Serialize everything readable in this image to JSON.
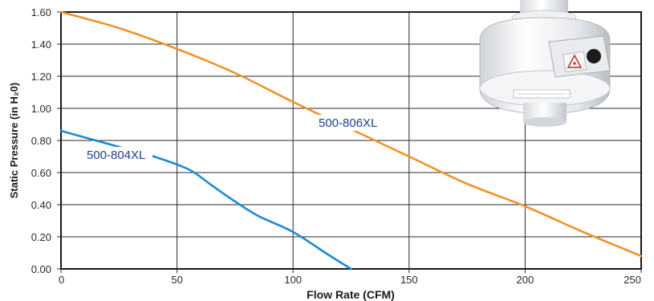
{
  "chart_data": {
    "type": "line",
    "xlabel": "Flow Rate (CFM)",
    "ylabel": "Static Pressure (in H₂0)",
    "xlim": [
      0,
      250
    ],
    "ylim": [
      0,
      1.6
    ],
    "x_ticks": [
      {
        "value": 0,
        "label": "0"
      },
      {
        "value": 50,
        "label": "50"
      },
      {
        "value": 100,
        "label": "100"
      },
      {
        "value": 150,
        "label": "150"
      },
      {
        "value": 200,
        "label": "200"
      },
      {
        "value": 250,
        "label": "250"
      }
    ],
    "y_ticks": [
      {
        "value": 0,
        "label": "0.00"
      },
      {
        "value": 0.2,
        "label": "0.20"
      },
      {
        "value": 0.4,
        "label": "0.40"
      },
      {
        "value": 0.6,
        "label": "0.60"
      },
      {
        "value": 0.8,
        "label": "0.80"
      },
      {
        "value": 1.0,
        "label": "1.00"
      },
      {
        "value": 1.2,
        "label": "1.20"
      },
      {
        "value": 1.4,
        "label": "1.40"
      },
      {
        "value": 1.6,
        "label": "1.60"
      }
    ],
    "grid": true,
    "series": [
      {
        "name": "500-806XL",
        "color": "#f0922b",
        "points": [
          [
            0,
            1.6
          ],
          [
            25,
            1.5
          ],
          [
            50,
            1.37
          ],
          [
            75,
            1.22
          ],
          [
            100,
            1.04
          ],
          [
            125,
            0.87
          ],
          [
            150,
            0.7
          ],
          [
            175,
            0.53
          ],
          [
            200,
            0.39
          ],
          [
            225,
            0.23
          ],
          [
            250,
            0.08
          ]
        ]
      },
      {
        "name": "500-804XL",
        "color": "#1f8ad0",
        "points": [
          [
            0,
            0.86
          ],
          [
            10,
            0.82
          ],
          [
            25,
            0.76
          ],
          [
            40,
            0.7
          ],
          [
            55,
            0.62
          ],
          [
            65,
            0.52
          ],
          [
            75,
            0.42
          ],
          [
            85,
            0.33
          ],
          [
            100,
            0.23
          ],
          [
            115,
            0.09
          ],
          [
            125,
            0.0
          ]
        ]
      }
    ]
  },
  "product_photo": {
    "icon": "inline-fan-photo",
    "base_color": "#e6e8eb",
    "highlight_color": "#ffffff"
  }
}
